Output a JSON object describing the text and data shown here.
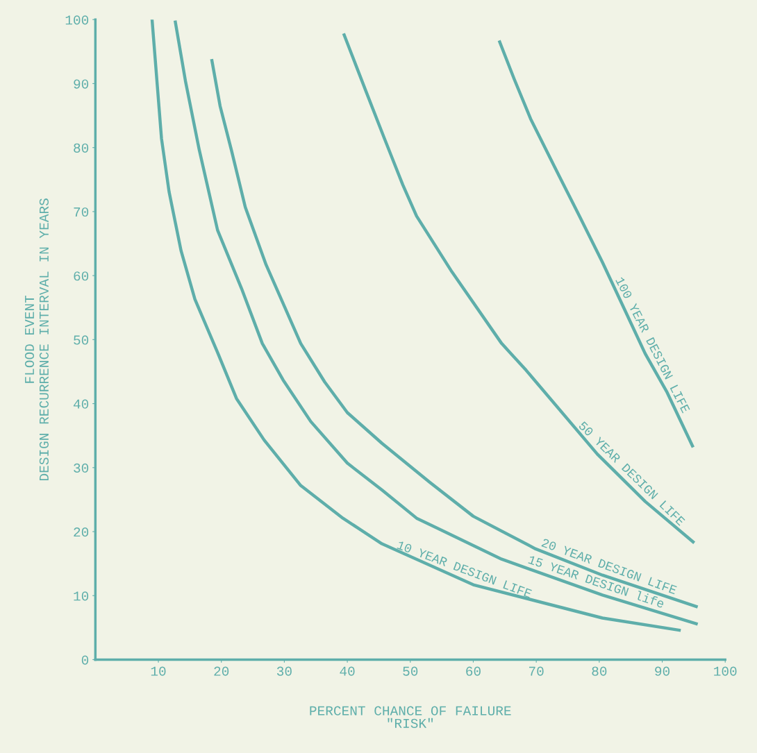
{
  "chart_data": {
    "type": "line",
    "xlabel": "PERCENT CHANCE OF FAILURE\n\"RISK\"",
    "ylabel": "FLOOD EVENT\nDESIGN RECURRENCE INTERVAL IN YEARS",
    "xlim": [
      0,
      100
    ],
    "ylim": [
      0,
      100
    ],
    "xticks": [
      10,
      20,
      30,
      40,
      50,
      60,
      70,
      80,
      90,
      100
    ],
    "yticks": [
      0,
      10,
      20,
      30,
      40,
      50,
      60,
      70,
      80,
      90,
      100
    ],
    "grid": false,
    "marker": "none",
    "line_style": "solid",
    "series": [
      {
        "name": "10 YEAR DESIGN LIFE",
        "color": "#5eaeaa",
        "x": [
          9.0,
          10.5,
          11.7,
          13.6,
          15.8,
          19.4,
          22.4,
          26.8,
          32.6,
          39.3,
          45.5,
          60.0,
          80.5,
          92.7
        ],
        "values": [
          100,
          81.4,
          73.1,
          63.9,
          56.3,
          48.0,
          40.8,
          34.3,
          27.2,
          22.1,
          18.1,
          11.7,
          6.5,
          4.6
        ]
      },
      {
        "name": "15 YEAR DESIGN life",
        "color": "#5eaeaa",
        "x": [
          12.7,
          14.3,
          16.5,
          19.4,
          23.2,
          26.5,
          29.8,
          34.2,
          40.0,
          45.5,
          51.0,
          64.5,
          80.5,
          95.4
        ],
        "values": [
          99.6,
          90.4,
          79.6,
          67.1,
          58.0,
          49.4,
          43.7,
          37.2,
          30.7,
          26.5,
          22.1,
          15.7,
          10.1,
          5.6
        ]
      },
      {
        "name": "20 YEAR DESIGN LIFE",
        "color": "#5eaeaa",
        "x": [
          18.5,
          19.8,
          21.6,
          23.8,
          27.1,
          32.6,
          36.4,
          40.0,
          45.5,
          53.1,
          60.0,
          69.9,
          80.5,
          95.4
        ],
        "values": [
          93.6,
          86.5,
          79.6,
          70.7,
          61.7,
          49.4,
          43.4,
          38.6,
          33.8,
          27.7,
          22.4,
          17.3,
          13.2,
          8.3
        ]
      },
      {
        "name": "50 YEAR DESIGN LIFE",
        "color": "#5eaeaa",
        "x": [
          39.5,
          43.0,
          45.9,
          48.8,
          51.0,
          56.6,
          64.5,
          68.4,
          79.7,
          87.3,
          94.9
        ],
        "values": [
          97.6,
          88.7,
          81.4,
          74.2,
          69.3,
          60.6,
          49.4,
          45.2,
          32.1,
          24.7,
          18.4
        ]
      },
      {
        "name": "100 YEAR DESIGN LIFE",
        "color": "#5eaeaa",
        "x": [
          64.2,
          66.5,
          69.1,
          72.9,
          76.7,
          80.5,
          83.6,
          87.3,
          90.7,
          94.8
        ],
        "values": [
          96.5,
          90.7,
          84.5,
          77.0,
          69.6,
          62.1,
          55.6,
          47.8,
          41.9,
          33.4
        ]
      }
    ]
  }
}
